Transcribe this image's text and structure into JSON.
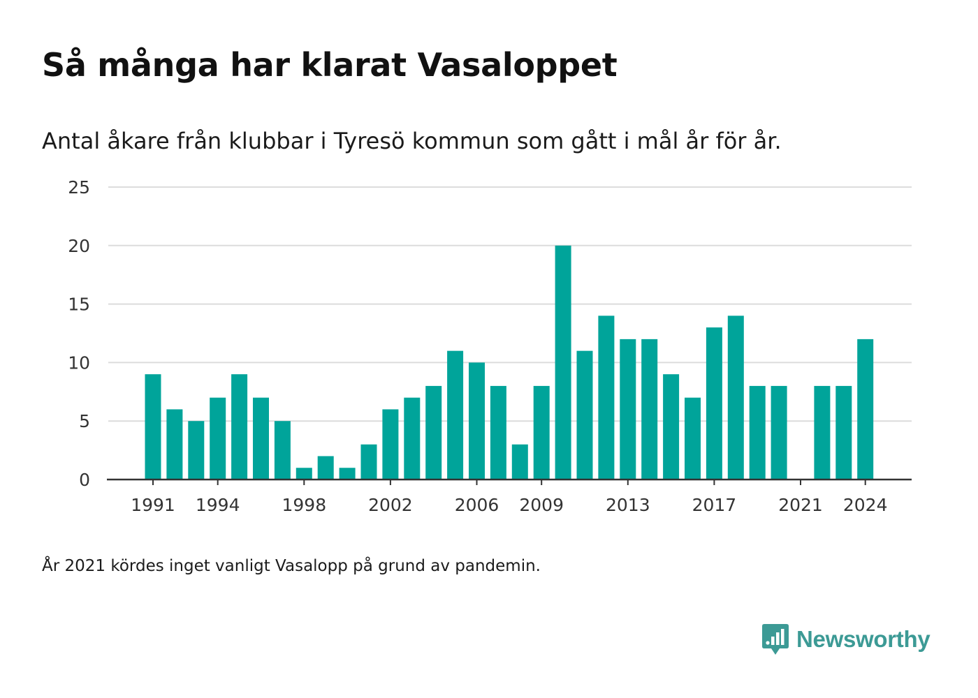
{
  "title": "Så många har klarat Vasaloppet",
  "subtitle": "Antal åkare från klubbar i Tyresö kommun som gått i mål år för år.",
  "footnote": "År 2021 kördes inget vanligt Vasalopp på grund av pandemin.",
  "brand": {
    "name": "Newsworthy",
    "icon": "newsworthy-logo-icon",
    "color": "#3c9a95"
  },
  "chart_data": {
    "type": "bar",
    "x": [
      1991,
      1992,
      1993,
      1994,
      1995,
      1996,
      1997,
      1998,
      1999,
      2000,
      2001,
      2002,
      2003,
      2004,
      2005,
      2006,
      2007,
      2008,
      2009,
      2010,
      2011,
      2012,
      2013,
      2014,
      2015,
      2016,
      2017,
      2018,
      2019,
      2020,
      2021,
      2022,
      2023,
      2024
    ],
    "values": [
      9,
      6,
      5,
      7,
      9,
      7,
      5,
      1,
      2,
      1,
      3,
      6,
      7,
      8,
      11,
      10,
      8,
      3,
      8,
      20,
      11,
      14,
      12,
      12,
      9,
      7,
      13,
      14,
      8,
      8,
      0,
      8,
      8,
      12
    ],
    "x_tick_labels": [
      "1991",
      "1994",
      "1998",
      "2002",
      "2006",
      "2009",
      "2013",
      "2017",
      "2021",
      "2024"
    ],
    "y_ticks": [
      0,
      5,
      10,
      15,
      20,
      25
    ],
    "ylim": [
      0,
      25
    ],
    "bar_color": "#00a49a",
    "grid": true,
    "legend": false
  }
}
